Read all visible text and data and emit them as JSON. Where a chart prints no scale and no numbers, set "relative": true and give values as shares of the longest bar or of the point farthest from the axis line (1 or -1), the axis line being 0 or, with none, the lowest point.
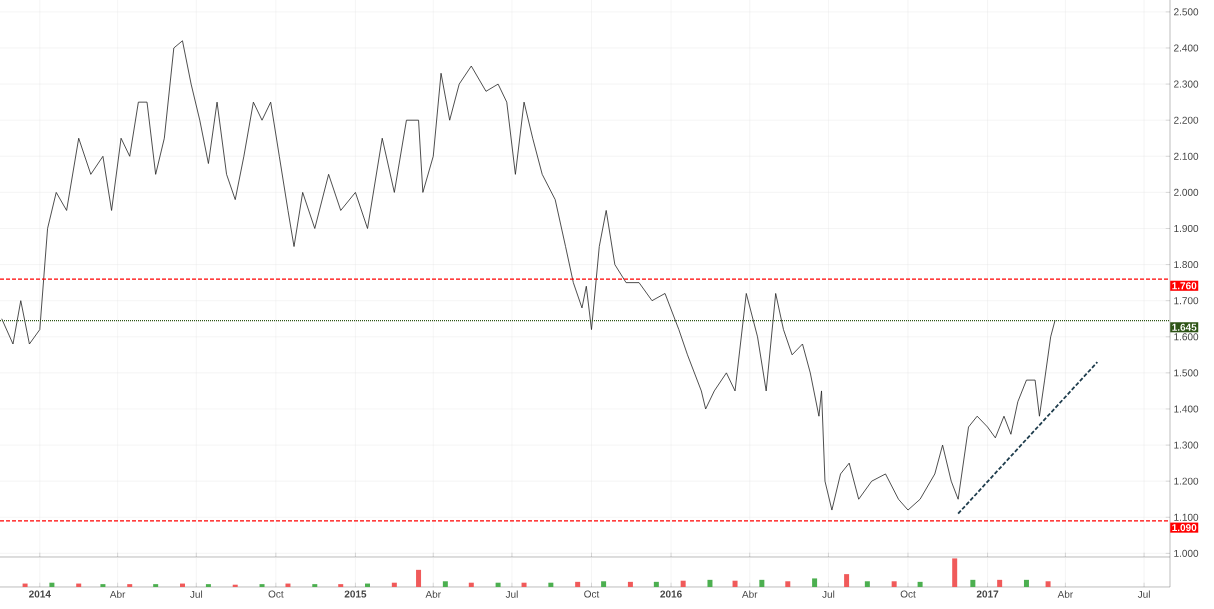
{
  "chart_data": [
    {
      "type": "line",
      "xlim": [
        "2013-11-16",
        "2017-07-31"
      ],
      "xticks": [
        {
          "value": "2014-01-01",
          "label": null
        },
        {
          "value": "2014-04-01",
          "label": null
        },
        {
          "value": "2014-07-01",
          "label": null
        },
        {
          "value": "2014-10-01",
          "label": null
        },
        {
          "value": "2015-01-01",
          "label": null
        },
        {
          "value": "2015-04-01",
          "label": null
        },
        {
          "value": "2015-07-01",
          "label": null
        },
        {
          "value": "2015-10-01",
          "label": null
        },
        {
          "value": "2016-01-01",
          "label": null
        },
        {
          "value": "2016-04-01",
          "label": null
        },
        {
          "value": "2016-07-01",
          "label": null
        },
        {
          "value": "2016-10-01",
          "label": null
        },
        {
          "value": "2017-01-01",
          "label": null
        },
        {
          "value": "2017-04-01",
          "label": null
        },
        {
          "value": "2017-07-01",
          "label": null
        }
      ],
      "ylim": [
        0.99,
        2.533
      ],
      "yticks": [
        {
          "value": 1.0,
          "label": "1.000"
        },
        {
          "value": 1.1,
          "label": "1.100"
        },
        {
          "value": 1.2,
          "label": "1.200"
        },
        {
          "value": 1.3,
          "label": "1.300"
        },
        {
          "value": 1.4,
          "label": "1.400"
        },
        {
          "value": 1.5,
          "label": "1.500"
        },
        {
          "value": 1.6,
          "label": "1.600"
        },
        {
          "value": 1.7,
          "label": "1.700"
        },
        {
          "value": 1.8,
          "label": "1.800"
        },
        {
          "value": 1.9,
          "label": "1.900"
        },
        {
          "value": 2.0,
          "label": "2.000"
        },
        {
          "value": 2.1,
          "label": "2.100"
        },
        {
          "value": 2.2,
          "label": "2.200"
        },
        {
          "value": 2.3,
          "label": "2.300"
        },
        {
          "value": 2.4,
          "label": "2.400"
        },
        {
          "value": 2.5,
          "label": "2.500"
        }
      ],
      "grid": true,
      "tick_labels": "y",
      "ref_lines": [
        {
          "axis": "y",
          "value": 1.76,
          "label": "1.760",
          "color": "#ff0000",
          "line_style": "dashed"
        },
        {
          "axis": "y",
          "value": 1.645,
          "label": "1.645",
          "color": "#2e5416",
          "line_style": "dotted"
        },
        {
          "axis": "y",
          "value": 1.09,
          "label": "1.090",
          "color": "#ff0000",
          "line_style": "dashed"
        }
      ],
      "series": [
        {
          "type": "line",
          "color": "#222222",
          "x": [
            "2013-11-18",
            "2013-12-01",
            "2013-12-10",
            "2013-12-20",
            "2014-01-01",
            "2014-01-10",
            "2014-01-20",
            "2014-02-01",
            "2014-02-15",
            "2014-03-01",
            "2014-03-15",
            "2014-03-25",
            "2014-04-05",
            "2014-04-15",
            "2014-04-25",
            "2014-05-05",
            "2014-05-15",
            "2014-05-25",
            "2014-06-05",
            "2014-06-15",
            "2014-06-25",
            "2014-07-05",
            "2014-07-15",
            "2014-07-25",
            "2014-08-05",
            "2014-08-15",
            "2014-08-25",
            "2014-09-05",
            "2014-09-15",
            "2014-09-25",
            "2014-10-05",
            "2014-10-15",
            "2014-10-22",
            "2014-11-01",
            "2014-11-15",
            "2014-12-01",
            "2014-12-15",
            "2015-01-01",
            "2015-01-15",
            "2015-02-01",
            "2015-02-15",
            "2015-03-01",
            "2015-03-15",
            "2015-03-20",
            "2015-04-01",
            "2015-04-10",
            "2015-04-20",
            "2015-05-01",
            "2015-05-15",
            "2015-06-01",
            "2015-06-15",
            "2015-06-25",
            "2015-07-05",
            "2015-07-15",
            "2015-07-25",
            "2015-08-05",
            "2015-08-20",
            "2015-09-01",
            "2015-09-10",
            "2015-09-20",
            "2015-09-25",
            "2015-10-01",
            "2015-10-10",
            "2015-10-18",
            "2015-10-28",
            "2015-11-10",
            "2015-11-25",
            "2015-12-10",
            "2015-12-25",
            "2016-01-10",
            "2016-01-20",
            "2016-02-05",
            "2016-02-10",
            "2016-02-20",
            "2016-03-05",
            "2016-03-15",
            "2016-03-28",
            "2016-04-10",
            "2016-04-20",
            "2016-05-01",
            "2016-05-10",
            "2016-05-20",
            "2016-06-01",
            "2016-06-10",
            "2016-06-20",
            "2016-06-23",
            "2016-06-27",
            "2016-07-05",
            "2016-07-15",
            "2016-07-25",
            "2016-08-05",
            "2016-08-20",
            "2016-09-05",
            "2016-09-20",
            "2016-10-01",
            "2016-10-15",
            "2016-11-01",
            "2016-11-10",
            "2016-11-20",
            "2016-11-28",
            "2016-12-10",
            "2016-12-20",
            "2017-01-01",
            "2017-01-10",
            "2017-01-20",
            "2017-01-28",
            "2017-02-05",
            "2017-02-15",
            "2017-02-25",
            "2017-03-02",
            "2017-03-08",
            "2017-03-15",
            "2017-03-20"
          ],
          "values": [
            1.65,
            1.58,
            1.7,
            1.58,
            1.62,
            1.9,
            2.0,
            1.95,
            2.15,
            2.05,
            2.1,
            1.95,
            2.15,
            2.1,
            2.25,
            2.25,
            2.05,
            2.15,
            2.4,
            2.42,
            2.3,
            2.2,
            2.08,
            2.25,
            2.05,
            1.98,
            2.1,
            2.25,
            2.2,
            2.25,
            2.1,
            1.95,
            1.85,
            2.0,
            1.9,
            2.05,
            1.95,
            2.0,
            1.9,
            2.15,
            2.0,
            2.2,
            2.2,
            2.0,
            2.1,
            2.33,
            2.2,
            2.3,
            2.35,
            2.28,
            2.3,
            2.25,
            2.05,
            2.25,
            2.15,
            2.05,
            1.98,
            1.85,
            1.75,
            1.68,
            1.74,
            1.62,
            1.85,
            1.95,
            1.8,
            1.75,
            1.75,
            1.7,
            1.72,
            1.62,
            1.55,
            1.45,
            1.4,
            1.45,
            1.5,
            1.45,
            1.72,
            1.6,
            1.45,
            1.72,
            1.62,
            1.55,
            1.58,
            1.5,
            1.38,
            1.45,
            1.2,
            1.12,
            1.22,
            1.25,
            1.15,
            1.2,
            1.22,
            1.15,
            1.12,
            1.15,
            1.22,
            1.3,
            1.2,
            1.15,
            1.35,
            1.38,
            1.35,
            1.32,
            1.38,
            1.33,
            1.42,
            1.48,
            1.48,
            1.38,
            1.48,
            1.6,
            1.645
          ]
        },
        {
          "type": "line",
          "color": "#1f3d4d",
          "line_style": "dashed",
          "x": [
            "2016-11-28",
            "2017-05-08"
          ],
          "values": [
            1.11,
            1.53
          ]
        }
      ]
    },
    {
      "type": "bar",
      "relative": true,
      "xlim": [
        "2013-11-16",
        "2017-07-31"
      ],
      "xticks": [
        {
          "value": "2014-01-01",
          "label": "2014"
        },
        {
          "value": "2014-04-01",
          "label": "Abr"
        },
        {
          "value": "2014-07-01",
          "label": "Jul"
        },
        {
          "value": "2014-10-01",
          "label": "Oct"
        },
        {
          "value": "2015-01-01",
          "label": "2015"
        },
        {
          "value": "2015-04-01",
          "label": "Abr"
        },
        {
          "value": "2015-07-01",
          "label": "Jul"
        },
        {
          "value": "2015-10-01",
          "label": "Oct"
        },
        {
          "value": "2016-01-01",
          "label": "2016"
        },
        {
          "value": "2016-04-01",
          "label": "Abr"
        },
        {
          "value": "2016-07-01",
          "label": "Jul"
        },
        {
          "value": "2016-10-01",
          "label": "Oct"
        },
        {
          "value": "2017-01-01",
          "label": "2017"
        },
        {
          "value": "2017-04-01",
          "label": "Abr"
        },
        {
          "value": "2017-07-01",
          "label": "Jul"
        }
      ],
      "grid": "x",
      "tick_labels": "x",
      "x": [
        "2013-12-15",
        "2014-01-15",
        "2014-02-15",
        "2014-03-15",
        "2014-04-15",
        "2014-05-15",
        "2014-06-15",
        "2014-07-15",
        "2014-08-15",
        "2014-09-15",
        "2014-10-15",
        "2014-11-15",
        "2014-12-15",
        "2015-01-15",
        "2015-02-15",
        "2015-03-15",
        "2015-04-15",
        "2015-05-15",
        "2015-06-15",
        "2015-07-15",
        "2015-08-15",
        "2015-09-15",
        "2015-10-15",
        "2015-11-15",
        "2015-12-15",
        "2016-01-15",
        "2016-02-15",
        "2016-03-15",
        "2016-04-15",
        "2016-05-15",
        "2016-06-15",
        "2016-07-22",
        "2016-08-15",
        "2016-09-15",
        "2016-10-15",
        "2016-11-24",
        "2016-12-15",
        "2017-01-15",
        "2017-02-15",
        "2017-03-12"
      ],
      "values": [
        0.12,
        0.15,
        0.12,
        0.1,
        0.1,
        0.1,
        0.12,
        0.1,
        0.08,
        0.1,
        0.12,
        0.1,
        0.1,
        0.12,
        0.15,
        0.6,
        0.2,
        0.15,
        0.15,
        0.15,
        0.15,
        0.18,
        0.2,
        0.18,
        0.18,
        0.22,
        0.25,
        0.22,
        0.25,
        0.2,
        0.3,
        0.45,
        0.2,
        0.2,
        0.18,
        1.0,
        0.25,
        0.25,
        0.25,
        0.2
      ],
      "colors": [
        "#f05a5a",
        "#4caf50",
        "#f05a5a",
        "#4caf50",
        "#f05a5a",
        "#4caf50",
        "#f05a5a",
        "#4caf50",
        "#f05a5a",
        "#4caf50",
        "#f05a5a",
        "#4caf50",
        "#f05a5a",
        "#4caf50",
        "#f05a5a",
        "#f05a5a",
        "#4caf50",
        "#f05a5a",
        "#4caf50",
        "#f05a5a",
        "#4caf50",
        "#f05a5a",
        "#4caf50",
        "#f05a5a",
        "#4caf50",
        "#f05a5a",
        "#4caf50",
        "#f05a5a",
        "#4caf50",
        "#f05a5a",
        "#4caf50",
        "#f05a5a",
        "#4caf50",
        "#f05a5a",
        "#4caf50",
        "#f05a5a",
        "#4caf50",
        "#f05a5a",
        "#4caf50",
        "#f05a5a"
      ]
    }
  ]
}
